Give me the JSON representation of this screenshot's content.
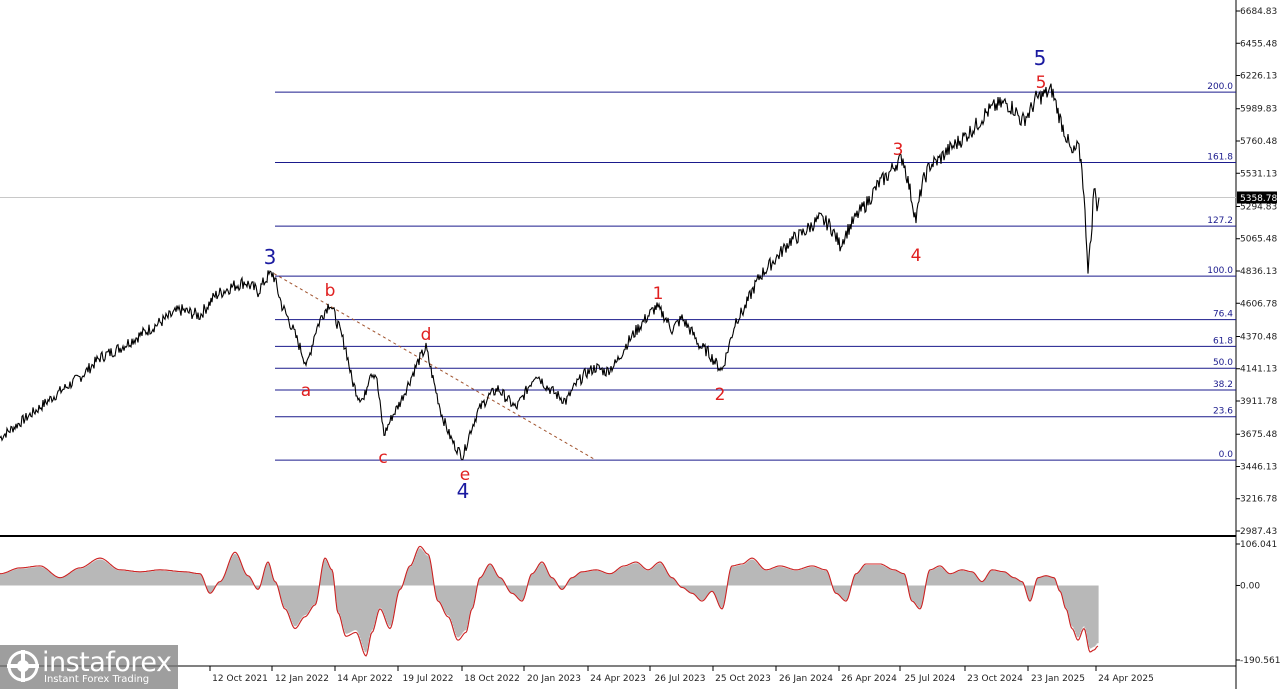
{
  "chart_data": [
    {
      "type": "line",
      "series": [
        {
          "values": [
            [
              0,
              3650
            ],
            [
              35,
              3840
            ],
            [
              60,
              3980
            ],
            [
              80,
              4080
            ],
            [
              100,
              4220
            ],
            [
              120,
              4290
            ],
            [
              140,
              4380
            ],
            [
              160,
              4470
            ],
            [
              180,
              4560
            ],
            [
              200,
              4520
            ],
            [
              215,
              4660
            ],
            [
              230,
              4720
            ],
            [
              245,
              4760
            ],
            [
              258,
              4690
            ],
            [
              268,
              4800
            ],
            [
              273,
              4818
            ],
            [
              282,
              4590
            ],
            [
              290,
              4470
            ],
            [
              298,
              4330
            ],
            [
              307,
              4160
            ],
            [
              315,
              4400
            ],
            [
              322,
              4520
            ],
            [
              330,
              4615
            ],
            [
              338,
              4450
            ],
            [
              346,
              4280
            ],
            [
              352,
              4060
            ],
            [
              358,
              3950
            ],
            [
              364,
              3920
            ],
            [
              370,
              4120
            ],
            [
              376,
              4100
            ],
            [
              384,
              3670
            ],
            [
              392,
              3800
            ],
            [
              400,
              3900
            ],
            [
              410,
              4060
            ],
            [
              418,
              4190
            ],
            [
              426,
              4290
            ],
            [
              434,
              4040
            ],
            [
              442,
              3810
            ],
            [
              450,
              3660
            ],
            [
              456,
              3580
            ],
            [
              463,
              3520
            ],
            [
              470,
              3690
            ],
            [
              478,
              3840
            ],
            [
              488,
              3940
            ],
            [
              498,
              4000
            ],
            [
              508,
              3920
            ],
            [
              516,
              3860
            ],
            [
              526,
              3980
            ],
            [
              536,
              4110
            ],
            [
              546,
              4020
            ],
            [
              556,
              3960
            ],
            [
              566,
              3910
            ],
            [
              576,
              4030
            ],
            [
              586,
              4110
            ],
            [
              596,
              4150
            ],
            [
              606,
              4120
            ],
            [
              616,
              4180
            ],
            [
              626,
              4310
            ],
            [
              636,
              4410
            ],
            [
              646,
              4500
            ],
            [
              656,
              4580
            ],
            [
              664,
              4520
            ],
            [
              672,
              4420
            ],
            [
              682,
              4500
            ],
            [
              692,
              4400
            ],
            [
              700,
              4300
            ],
            [
              708,
              4260
            ],
            [
              716,
              4180
            ],
            [
              722,
              4130
            ],
            [
              728,
              4280
            ],
            [
              736,
              4490
            ],
            [
              744,
              4560
            ],
            [
              752,
              4690
            ],
            [
              760,
              4800
            ],
            [
              770,
              4880
            ],
            [
              780,
              4960
            ],
            [
              790,
              5050
            ],
            [
              800,
              5090
            ],
            [
              810,
              5150
            ],
            [
              820,
              5210
            ],
            [
              830,
              5160
            ],
            [
              840,
              5020
            ],
            [
              848,
              5130
            ],
            [
              858,
              5240
            ],
            [
              868,
              5330
            ],
            [
              878,
              5450
            ],
            [
              888,
              5520
            ],
            [
              896,
              5600
            ],
            [
              903,
              5640
            ],
            [
              910,
              5410
            ],
            [
              916,
              5200
            ],
            [
              922,
              5450
            ],
            [
              930,
              5590
            ],
            [
              938,
              5620
            ],
            [
              946,
              5680
            ],
            [
              956,
              5740
            ],
            [
              966,
              5800
            ],
            [
              976,
              5870
            ],
            [
              986,
              5960
            ],
            [
              996,
              6010
            ],
            [
              1006,
              6030
            ],
            [
              1014,
              5990
            ],
            [
              1022,
              5900
            ],
            [
              1030,
              5970
            ],
            [
              1036,
              6060
            ],
            [
              1044,
              6090
            ],
            [
              1052,
              6120
            ],
            [
              1060,
              5920
            ],
            [
              1066,
              5800
            ],
            [
              1072,
              5660
            ],
            [
              1078,
              5720
            ],
            [
              1082,
              5580
            ],
            [
              1086,
              5120
            ],
            [
              1088,
              4860
            ],
            [
              1091,
              5060
            ],
            [
              1094,
              5440
            ],
            [
              1097,
              5300
            ],
            [
              1099,
              5359
            ]
          ],
          "color": "#000000"
        }
      ],
      "y_ticks": [
        "6684.83",
        "6455.48",
        "6226.13",
        "5989.83",
        "5760.48",
        "5531.13",
        "5294.83",
        "5065.48",
        "4836.13",
        "4606.78",
        "4370.48",
        "4141.13",
        "3911.78",
        "3675.48",
        "3446.13",
        "3216.78",
        "2987.43"
      ],
      "ylim": [
        2950,
        6750
      ],
      "current_price": "5358.78",
      "fib_levels": [
        {
          "label": "0.0",
          "value": 3491
        },
        {
          "label": "23.6",
          "value": 3800
        },
        {
          "label": "38.2",
          "value": 3990
        },
        {
          "label": "50.0",
          "value": 4145
        },
        {
          "label": "61.8",
          "value": 4300
        },
        {
          "label": "76.4",
          "value": 4490
        },
        {
          "label": "100.0",
          "value": 4800
        },
        {
          "label": "127.2",
          "value": 5155
        },
        {
          "label": "161.8",
          "value": 5608
        },
        {
          "label": "200.0",
          "value": 6108
        }
      ],
      "wave_labels": [
        {
          "text": "3",
          "color": "blue"
        },
        {
          "text": "a",
          "color": "red"
        },
        {
          "text": "b",
          "color": "red"
        },
        {
          "text": "c",
          "color": "red"
        },
        {
          "text": "d",
          "color": "red"
        },
        {
          "text": "e",
          "color": "red"
        },
        {
          "text": "4",
          "color": "blue"
        },
        {
          "text": "1",
          "color": "red"
        },
        {
          "text": "2",
          "color": "red"
        },
        {
          "text": "3",
          "color": "red"
        },
        {
          "text": "4",
          "color": "red"
        },
        {
          "text": "5",
          "color": "red"
        },
        {
          "text": "5",
          "color": "blue"
        }
      ],
      "x_ticks": [
        "12 Oct 2021",
        "12 Jan 2022",
        "14 Apr 2022",
        "19 Jul 2022",
        "18 Oct 2022",
        "20 Jan 2023",
        "24 Apr 2023",
        "26 Jul 2023",
        "25 Oct 2023",
        "26 Jan 2024",
        "26 Apr 2024",
        "25 Jul 2024",
        "23 Oct 2024",
        "23 Jan 2025",
        "24 Apr 2025"
      ]
    },
    {
      "type": "area",
      "y_ticks": [
        "106.041",
        "0.00",
        "-190.561"
      ],
      "ylim": [
        -190.561,
        106.041
      ],
      "series": [
        {
          "values": [
            [
              0,
              30
            ],
            [
              20,
              45
            ],
            [
              40,
              50
            ],
            [
              60,
              20
            ],
            [
              80,
              45
            ],
            [
              100,
              70
            ],
            [
              120,
              40
            ],
            [
              140,
              35
            ],
            [
              160,
              40
            ],
            [
              185,
              35
            ],
            [
              200,
              30
            ],
            [
              210,
              -20
            ],
            [
              220,
              10
            ],
            [
              235,
              85
            ],
            [
              248,
              25
            ],
            [
              258,
              -10
            ],
            [
              268,
              60
            ],
            [
              275,
              10
            ],
            [
              285,
              -60
            ],
            [
              295,
              -110
            ],
            [
              305,
              -80
            ],
            [
              315,
              -50
            ],
            [
              325,
              70
            ],
            [
              332,
              40
            ],
            [
              338,
              -70
            ],
            [
              346,
              -130
            ],
            [
              356,
              -120
            ],
            [
              366,
              -180
            ],
            [
              372,
              -120
            ],
            [
              380,
              -60
            ],
            [
              390,
              -110
            ],
            [
              400,
              -10
            ],
            [
              410,
              50
            ],
            [
              420,
              100
            ],
            [
              428,
              80
            ],
            [
              438,
              -40
            ],
            [
              448,
              -80
            ],
            [
              458,
              -140
            ],
            [
              466,
              -120
            ],
            [
              472,
              -60
            ],
            [
              480,
              20
            ],
            [
              490,
              55
            ],
            [
              500,
              20
            ],
            [
              512,
              -20
            ],
            [
              522,
              -40
            ],
            [
              532,
              30
            ],
            [
              542,
              60
            ],
            [
              552,
              20
            ],
            [
              562,
              -10
            ],
            [
              572,
              20
            ],
            [
              582,
              35
            ],
            [
              596,
              40
            ],
            [
              610,
              30
            ],
            [
              624,
              50
            ],
            [
              636,
              60
            ],
            [
              648,
              40
            ],
            [
              660,
              60
            ],
            [
              672,
              20
            ],
            [
              682,
              -5
            ],
            [
              692,
              -20
            ],
            [
              702,
              -40
            ],
            [
              712,
              -15
            ],
            [
              722,
              -60
            ],
            [
              732,
              50
            ],
            [
              742,
              55
            ],
            [
              752,
              70
            ],
            [
              766,
              40
            ],
            [
              780,
              50
            ],
            [
              796,
              40
            ],
            [
              812,
              50
            ],
            [
              826,
              40
            ],
            [
              836,
              -20
            ],
            [
              846,
              -40
            ],
            [
              856,
              30
            ],
            [
              866,
              55
            ],
            [
              880,
              55
            ],
            [
              894,
              40
            ],
            [
              904,
              30
            ],
            [
              912,
              -40
            ],
            [
              920,
              -60
            ],
            [
              930,
              40
            ],
            [
              940,
              50
            ],
            [
              950,
              30
            ],
            [
              962,
              40
            ],
            [
              972,
              35
            ],
            [
              982,
              10
            ],
            [
              992,
              40
            ],
            [
              1004,
              35
            ],
            [
              1014,
              20
            ],
            [
              1022,
              10
            ],
            [
              1030,
              -40
            ],
            [
              1038,
              20
            ],
            [
              1046,
              25
            ],
            [
              1054,
              20
            ],
            [
              1060,
              -15
            ],
            [
              1066,
              -60
            ],
            [
              1072,
              -110
            ],
            [
              1078,
              -140
            ],
            [
              1084,
              -110
            ],
            [
              1090,
              -170
            ],
            [
              1094,
              -165
            ],
            [
              1098,
              -155
            ]
          ],
          "line_color": "#cc2222",
          "fill_color": "#b8b8b8"
        }
      ]
    }
  ],
  "logo": {
    "brand": "instaforex",
    "tagline": "Instant Forex Trading"
  }
}
